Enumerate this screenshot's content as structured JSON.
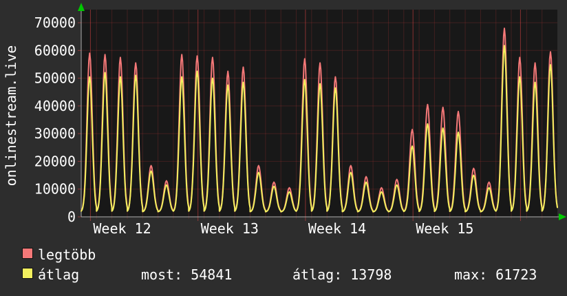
{
  "chart_data": {
    "type": "line",
    "title": "",
    "ylabel_text": "onlinestream.live",
    "xlabel": "",
    "ylim": [
      0,
      70000
    ],
    "yticks": [
      0,
      10000,
      20000,
      30000,
      40000,
      50000,
      60000,
      70000
    ],
    "x_span_days": 31,
    "week_ticks": [
      {
        "label": "Week 12",
        "day": 0.6
      },
      {
        "label": "Week 13",
        "day": 7.6
      },
      {
        "label": "Week 14",
        "day": 14.6
      },
      {
        "label": "Week 15",
        "day": 21.6
      },
      {
        "label": "",
        "day": 28.6
      }
    ],
    "baseline": 1800,
    "grid": true,
    "legend_position": "bottom-left",
    "plot_bg": "#181818",
    "grid_color": "rgba(225,70,70,0.55)",
    "grid_color_minor": "rgba(160,50,50,0.30)",
    "axis_color": "#b0b0b0",
    "arrow_color": "#00c800",
    "text_color": "#ffffff",
    "series": [
      {
        "name": "legtöbb",
        "color": "#f47878",
        "daily_peaks": [
          59000,
          58500,
          57500,
          55500,
          18500,
          13000,
          58500,
          58000,
          57500,
          52500,
          54000,
          18500,
          12500,
          10500,
          57000,
          55500,
          50500,
          18500,
          14500,
          10500,
          13500,
          31500,
          40500,
          39500,
          38000,
          17500,
          12500,
          68000,
          57500,
          55500,
          59500
        ]
      },
      {
        "name": "átlag",
        "color": "#f2ef5e",
        "daily_peaks": [
          50500,
          52000,
          50500,
          51000,
          16500,
          11500,
          50500,
          52500,
          50000,
          47500,
          48500,
          16000,
          11000,
          9000,
          49500,
          48000,
          46500,
          16000,
          12500,
          9000,
          11500,
          25500,
          33500,
          32000,
          30500,
          15000,
          10500,
          61723,
          50500,
          48500,
          54841
        ]
      }
    ]
  },
  "stats": [
    {
      "label": "most:",
      "value": "54841"
    },
    {
      "label": "átlag:",
      "value": "13798"
    },
    {
      "label": "max:",
      "value": "61723"
    }
  ]
}
